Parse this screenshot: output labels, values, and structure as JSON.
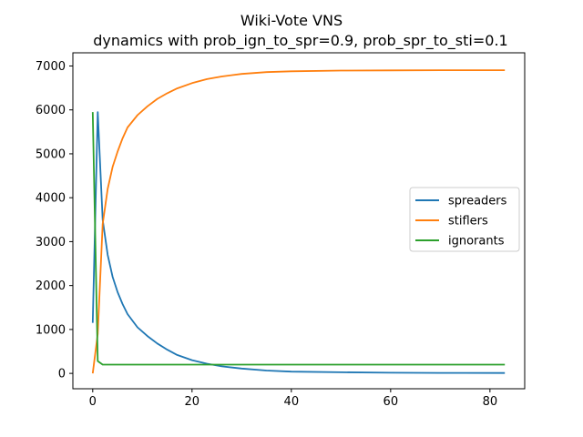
{
  "chart_data": {
    "type": "line",
    "title": "Wiki-Vote VNS",
    "subtitle": "dynamics with prob_ign_to_spr=0.9, prob_spr_to_sti=0.1",
    "xlabel": "",
    "ylabel": "",
    "xlim": [
      -4,
      87
    ],
    "ylim": [
      -350,
      7300
    ],
    "x_ticks": [
      0,
      20,
      40,
      60,
      80
    ],
    "y_ticks": [
      0,
      1000,
      2000,
      3000,
      4000,
      5000,
      6000,
      7000
    ],
    "x_tick_labels": [
      "0",
      "20",
      "40",
      "60",
      "80"
    ],
    "y_tick_labels": [
      "0",
      "1000",
      "2000",
      "3000",
      "4000",
      "5000",
      "6000",
      "7000"
    ],
    "grid": false,
    "legend_position": "center-right",
    "series": [
      {
        "name": "spreaders",
        "color": "#1f77b4",
        "x": [
          0,
          1,
          2,
          3,
          4,
          5,
          6,
          7,
          9,
          11,
          13,
          15,
          17,
          20,
          23,
          26,
          30,
          35,
          40,
          50,
          60,
          70,
          83
        ],
        "y": [
          1150,
          5950,
          3500,
          2700,
          2200,
          1850,
          1580,
          1350,
          1050,
          850,
          680,
          540,
          420,
          300,
          220,
          160,
          110,
          65,
          40,
          25,
          15,
          10,
          8
        ]
      },
      {
        "name": "stiflers",
        "color": "#ff7f0e",
        "x": [
          0,
          1,
          2,
          3,
          4,
          5,
          6,
          7,
          9,
          11,
          13,
          15,
          17,
          20,
          23,
          26,
          30,
          35,
          40,
          50,
          60,
          70,
          83
        ],
        "y": [
          0,
          900,
          3400,
          4200,
          4700,
          5050,
          5350,
          5600,
          5880,
          6080,
          6250,
          6380,
          6490,
          6610,
          6700,
          6760,
          6820,
          6860,
          6880,
          6895,
          6900,
          6905,
          6905
        ]
      },
      {
        "name": "ignorants",
        "color": "#2ca02c",
        "x": [
          0,
          1,
          2,
          3,
          5,
          10,
          20,
          40,
          60,
          83
        ],
        "y": [
          5950,
          280,
          200,
          200,
          200,
          200,
          200,
          200,
          200,
          200
        ]
      }
    ]
  }
}
